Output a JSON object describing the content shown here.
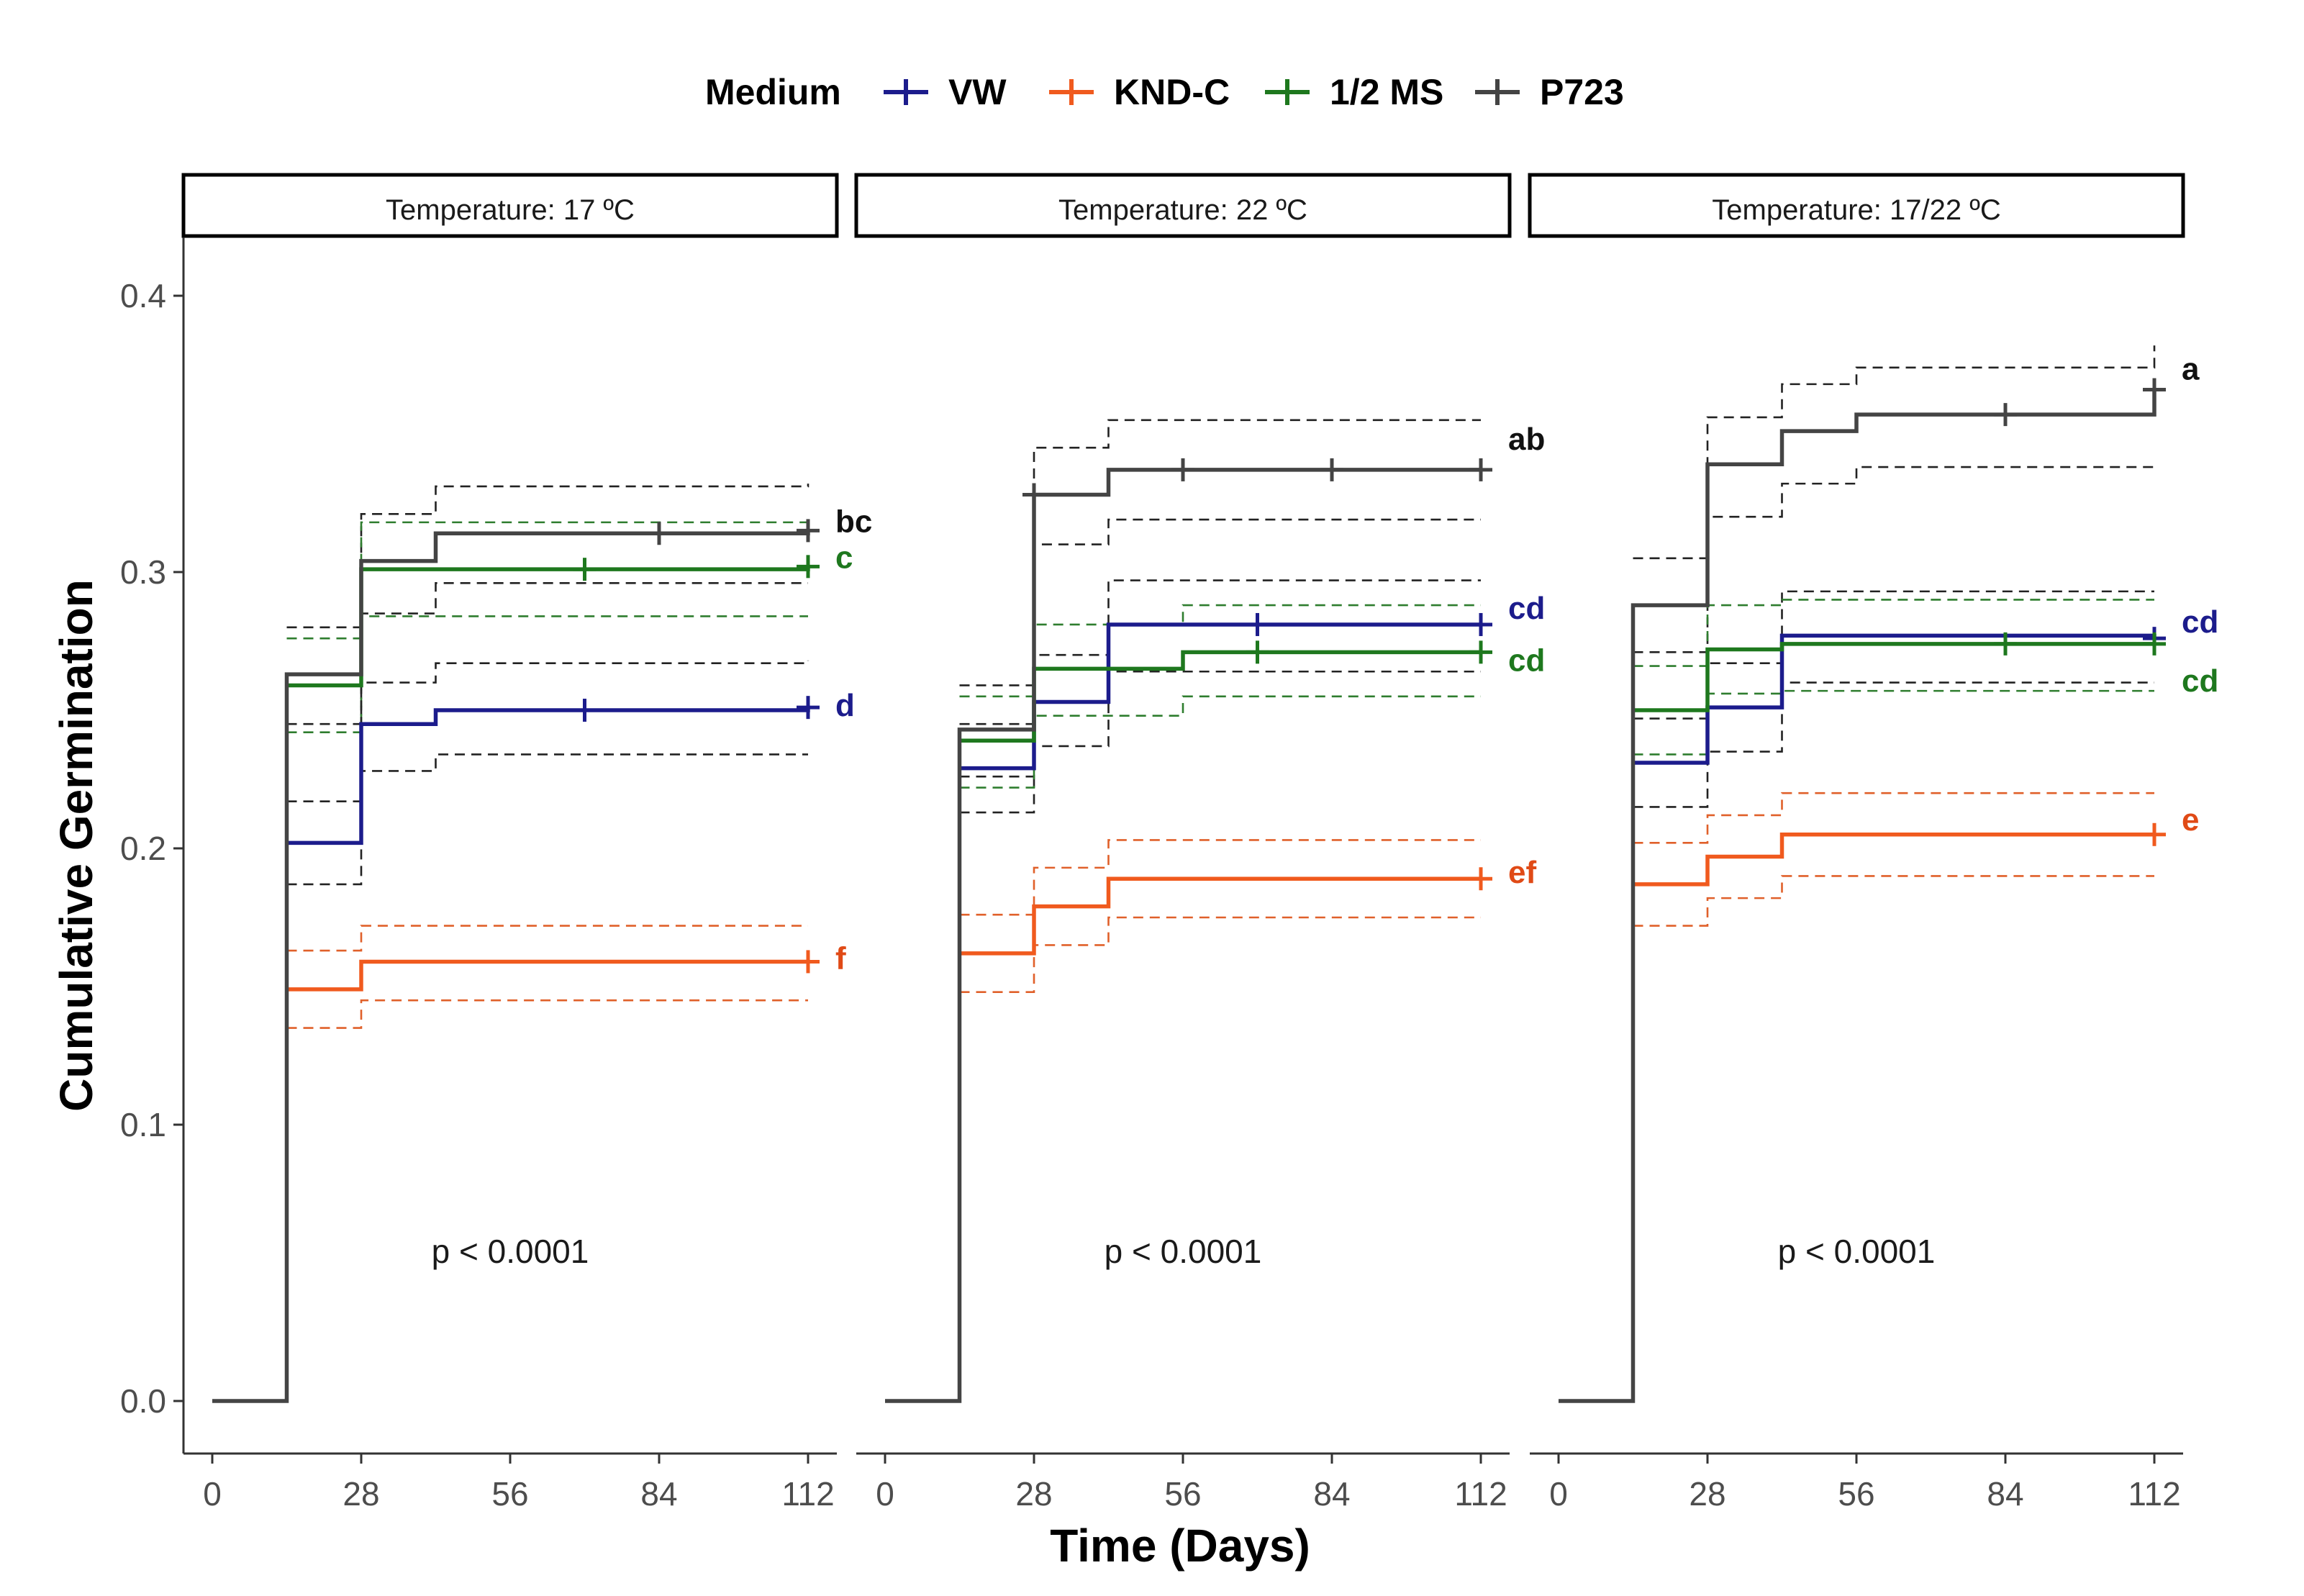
{
  "chart_data": {
    "type": "line",
    "subtype": "step (Kaplan-Meier style) with dashed confidence bands",
    "title": "",
    "xlabel": "Time (Days)",
    "ylabel": "Cumulative Germination",
    "xlim": [
      0,
      112
    ],
    "ylim": [
      0,
      0.4
    ],
    "x_ticks": [
      "0",
      "28",
      "56",
      "84",
      "112"
    ],
    "y_ticks": [
      "0.0",
      "0.1",
      "0.2",
      "0.3",
      "0.4"
    ],
    "legend": {
      "title": "Medium",
      "position": "top",
      "entries": [
        {
          "name": "VW",
          "color": "#1c1c8c"
        },
        {
          "name": "KND-C",
          "color": "#f05a1e"
        },
        {
          "name": "1/2 MS",
          "color": "#1e781e"
        },
        {
          "name": "P723",
          "color": "#444444"
        }
      ]
    },
    "panels": [
      {
        "strip": "Temperature: 17 ºC",
        "pvalue": "p < 0.0001",
        "series": [
          {
            "name": "P723",
            "steps": [
              [
                0,
                0
              ],
              [
                14,
                0.263
              ],
              [
                28,
                0.304
              ],
              [
                42,
                0.314
              ],
              [
                112,
                0.315
              ]
            ],
            "ci_lower": [
              [
                14,
                0.245
              ],
              [
                28,
                0.285
              ],
              [
                42,
                0.296
              ],
              [
                112,
                0.296
              ]
            ],
            "ci_upper": [
              [
                14,
                0.28
              ],
              [
                28,
                0.321
              ],
              [
                42,
                0.331
              ],
              [
                112,
                0.332
              ]
            ],
            "censor_x": [
              84,
              112
            ],
            "letter": "bc"
          },
          {
            "name": "1/2 MS",
            "steps": [
              [
                14,
                0.259
              ],
              [
                28,
                0.301
              ],
              [
                112,
                0.302
              ]
            ],
            "ci_lower": [
              [
                14,
                0.242
              ],
              [
                28,
                0.284
              ],
              [
                112,
                0.284
              ]
            ],
            "ci_upper": [
              [
                14,
                0.276
              ],
              [
                28,
                0.318
              ],
              [
                112,
                0.319
              ]
            ],
            "censor_x": [
              70,
              112
            ],
            "letter": "c"
          },
          {
            "name": "VW",
            "steps": [
              [
                14,
                0.202
              ],
              [
                28,
                0.245
              ],
              [
                42,
                0.25
              ],
              [
                112,
                0.251
              ]
            ],
            "ci_lower": [
              [
                14,
                0.187
              ],
              [
                28,
                0.228
              ],
              [
                42,
                0.234
              ],
              [
                112,
                0.234
              ]
            ],
            "ci_upper": [
              [
                14,
                0.217
              ],
              [
                28,
                0.26
              ],
              [
                42,
                0.267
              ],
              [
                112,
                0.268
              ]
            ],
            "censor_x": [
              70,
              112
            ],
            "letter": "d"
          },
          {
            "name": "KND-C",
            "steps": [
              [
                14,
                0.149
              ],
              [
                28,
                0.159
              ],
              [
                112,
                0.159
              ]
            ],
            "ci_lower": [
              [
                14,
                0.135
              ],
              [
                28,
                0.145
              ],
              [
                112,
                0.145
              ]
            ],
            "ci_upper": [
              [
                14,
                0.163
              ],
              [
                28,
                0.172
              ],
              [
                112,
                0.172
              ]
            ],
            "censor_x": [
              112
            ],
            "letter": "f"
          }
        ]
      },
      {
        "strip": "Temperature: 22 ºC",
        "pvalue": "p < 0.0001",
        "series": [
          {
            "name": "P723",
            "steps": [
              [
                0,
                0
              ],
              [
                14,
                0.243
              ],
              [
                28,
                0.328
              ],
              [
                42,
                0.337
              ],
              [
                112,
                0.337
              ]
            ],
            "ci_lower": [
              [
                14,
                0.226
              ],
              [
                28,
                0.31
              ],
              [
                42,
                0.319
              ],
              [
                112,
                0.319
              ]
            ],
            "ci_upper": [
              [
                14,
                0.259
              ],
              [
                28,
                0.345
              ],
              [
                42,
                0.355
              ],
              [
                112,
                0.355
              ]
            ],
            "censor_x": [
              28,
              56,
              84,
              112
            ],
            "letter": "ab"
          },
          {
            "name": "VW",
            "steps": [
              [
                14,
                0.229
              ],
              [
                28,
                0.253
              ],
              [
                42,
                0.281
              ],
              [
                112,
                0.281
              ]
            ],
            "ci_lower": [
              [
                14,
                0.213
              ],
              [
                28,
                0.237
              ],
              [
                42,
                0.264
              ],
              [
                112,
                0.264
              ]
            ],
            "ci_upper": [
              [
                14,
                0.245
              ],
              [
                28,
                0.27
              ],
              [
                42,
                0.297
              ],
              [
                112,
                0.297
              ]
            ],
            "censor_x": [
              70,
              112
            ],
            "letter": "cd"
          },
          {
            "name": "1/2 MS",
            "steps": [
              [
                14,
                0.239
              ],
              [
                28,
                0.265
              ],
              [
                56,
                0.271
              ],
              [
                112,
                0.271
              ]
            ],
            "ci_lower": [
              [
                14,
                0.222
              ],
              [
                28,
                0.248
              ],
              [
                56,
                0.255
              ],
              [
                112,
                0.255
              ]
            ],
            "ci_upper": [
              [
                14,
                0.255
              ],
              [
                28,
                0.281
              ],
              [
                56,
                0.288
              ],
              [
                112,
                0.288
              ]
            ],
            "censor_x": [
              70,
              112
            ],
            "letter": "cd"
          },
          {
            "name": "KND-C",
            "steps": [
              [
                14,
                0.162
              ],
              [
                28,
                0.179
              ],
              [
                42,
                0.189
              ],
              [
                112,
                0.189
              ]
            ],
            "ci_lower": [
              [
                14,
                0.148
              ],
              [
                28,
                0.165
              ],
              [
                42,
                0.175
              ],
              [
                112,
                0.175
              ]
            ],
            "ci_upper": [
              [
                14,
                0.176
              ],
              [
                28,
                0.193
              ],
              [
                42,
                0.203
              ],
              [
                112,
                0.203
              ]
            ],
            "censor_x": [
              112
            ],
            "letter": "ef"
          }
        ]
      },
      {
        "strip": "Temperature: 17/22 ºC",
        "pvalue": "p < 0.0001",
        "series": [
          {
            "name": "P723",
            "steps": [
              [
                0,
                0
              ],
              [
                14,
                0.288
              ],
              [
                28,
                0.339
              ],
              [
                42,
                0.351
              ],
              [
                56,
                0.357
              ],
              [
                112,
                0.366
              ]
            ],
            "ci_lower": [
              [
                14,
                0.271
              ],
              [
                28,
                0.32
              ],
              [
                42,
                0.332
              ],
              [
                56,
                0.338
              ],
              [
                112,
                0.338
              ]
            ],
            "ci_upper": [
              [
                14,
                0.305
              ],
              [
                28,
                0.356
              ],
              [
                42,
                0.368
              ],
              [
                56,
                0.374
              ],
              [
                112,
                0.382
              ]
            ],
            "censor_x": [
              84,
              112
            ],
            "letter": "a"
          },
          {
            "name": "VW",
            "steps": [
              [
                14,
                0.231
              ],
              [
                28,
                0.251
              ],
              [
                42,
                0.277
              ],
              [
                112,
                0.276
              ]
            ],
            "ci_lower": [
              [
                14,
                0.215
              ],
              [
                28,
                0.235
              ],
              [
                42,
                0.26
              ],
              [
                112,
                0.26
              ]
            ],
            "ci_upper": [
              [
                14,
                0.247
              ],
              [
                28,
                0.267
              ],
              [
                42,
                0.293
              ],
              [
                112,
                0.293
              ]
            ],
            "censor_x": [
              112
            ],
            "letter": "cd"
          },
          {
            "name": "1/2 MS",
            "steps": [
              [
                14,
                0.25
              ],
              [
                28,
                0.272
              ],
              [
                42,
                0.274
              ],
              [
                112,
                0.274
              ]
            ],
            "ci_lower": [
              [
                14,
                0.234
              ],
              [
                28,
                0.256
              ],
              [
                42,
                0.257
              ],
              [
                112,
                0.257
              ]
            ],
            "ci_upper": [
              [
                14,
                0.266
              ],
              [
                28,
                0.288
              ],
              [
                42,
                0.29
              ],
              [
                112,
                0.29
              ]
            ],
            "censor_x": [
              84,
              112
            ],
            "letter": "cd"
          },
          {
            "name": "KND-C",
            "steps": [
              [
                14,
                0.187
              ],
              [
                28,
                0.197
              ],
              [
                42,
                0.205
              ],
              [
                112,
                0.205
              ]
            ],
            "ci_lower": [
              [
                14,
                0.172
              ],
              [
                28,
                0.182
              ],
              [
                42,
                0.19
              ],
              [
                112,
                0.19
              ]
            ],
            "ci_upper": [
              [
                14,
                0.202
              ],
              [
                28,
                0.212
              ],
              [
                42,
                0.22
              ],
              [
                112,
                0.22
              ]
            ],
            "censor_x": [
              112
            ],
            "letter": "e"
          }
        ]
      }
    ]
  }
}
